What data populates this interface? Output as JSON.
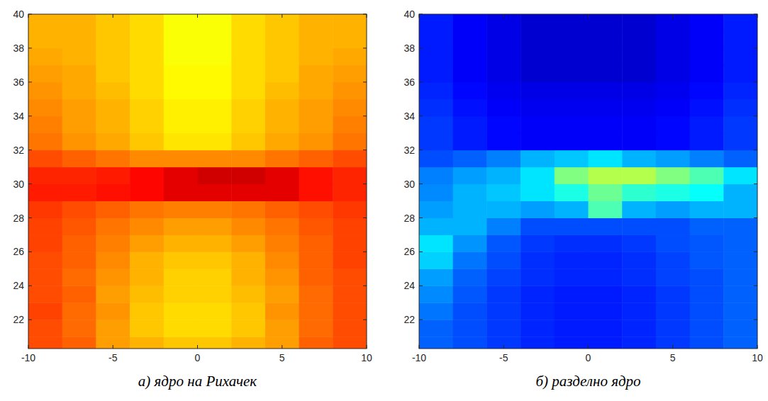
{
  "chart_data": [
    {
      "type": "heatmap",
      "caption": "а) ядро на Рихачек",
      "color": "jet",
      "xlim": [
        -10,
        10
      ],
      "ylim": [
        20.3,
        40
      ],
      "xticks": [
        -10,
        -5,
        0,
        5,
        10
      ],
      "yticks": [
        22,
        24,
        26,
        28,
        30,
        32,
        34,
        36,
        38,
        40
      ],
      "zlim": [
        0,
        1
      ],
      "x_edges": [
        -10,
        -8,
        -6,
        -4,
        -2,
        0,
        2,
        4,
        6,
        8,
        10
      ],
      "y_edges": [
        20.3,
        21,
        22,
        23,
        24,
        25,
        26,
        27,
        28,
        29,
        30,
        31,
        32,
        33,
        34,
        35,
        36,
        37,
        38,
        39,
        40
      ],
      "cells": [
        [
          0.8,
          0.78,
          0.72,
          0.7,
          0.68,
          0.68,
          0.7,
          0.72,
          0.78,
          0.8
        ],
        [
          0.8,
          0.77,
          0.72,
          0.68,
          0.66,
          0.66,
          0.68,
          0.72,
          0.77,
          0.8
        ],
        [
          0.81,
          0.77,
          0.73,
          0.68,
          0.66,
          0.66,
          0.68,
          0.73,
          0.77,
          0.8
        ],
        [
          0.8,
          0.78,
          0.72,
          0.69,
          0.67,
          0.67,
          0.69,
          0.72,
          0.77,
          0.8
        ],
        [
          0.8,
          0.77,
          0.73,
          0.7,
          0.67,
          0.67,
          0.7,
          0.73,
          0.78,
          0.8
        ],
        [
          0.8,
          0.78,
          0.74,
          0.7,
          0.68,
          0.68,
          0.7,
          0.74,
          0.78,
          0.81
        ],
        [
          0.81,
          0.78,
          0.75,
          0.72,
          0.7,
          0.7,
          0.72,
          0.75,
          0.78,
          0.81
        ],
        [
          0.81,
          0.79,
          0.76,
          0.74,
          0.72,
          0.72,
          0.74,
          0.76,
          0.79,
          0.81
        ],
        [
          0.82,
          0.8,
          0.78,
          0.76,
          0.75,
          0.75,
          0.76,
          0.78,
          0.8,
          0.82
        ],
        [
          0.85,
          0.85,
          0.86,
          0.87,
          0.9,
          0.9,
          0.9,
          0.9,
          0.86,
          0.84
        ],
        [
          0.84,
          0.84,
          0.85,
          0.87,
          0.9,
          0.92,
          0.92,
          0.9,
          0.86,
          0.84
        ],
        [
          0.8,
          0.78,
          0.76,
          0.74,
          0.74,
          0.74,
          0.74,
          0.76,
          0.78,
          0.8
        ],
        [
          0.76,
          0.73,
          0.71,
          0.68,
          0.65,
          0.65,
          0.68,
          0.71,
          0.73,
          0.76
        ],
        [
          0.75,
          0.72,
          0.7,
          0.67,
          0.64,
          0.64,
          0.67,
          0.7,
          0.72,
          0.75
        ],
        [
          0.74,
          0.72,
          0.7,
          0.67,
          0.64,
          0.64,
          0.67,
          0.7,
          0.72,
          0.74
        ],
        [
          0.73,
          0.71,
          0.69,
          0.66,
          0.63,
          0.63,
          0.66,
          0.69,
          0.71,
          0.73
        ],
        [
          0.72,
          0.71,
          0.68,
          0.66,
          0.63,
          0.63,
          0.66,
          0.68,
          0.71,
          0.72
        ],
        [
          0.71,
          0.7,
          0.68,
          0.66,
          0.62,
          0.62,
          0.66,
          0.68,
          0.7,
          0.71
        ],
        [
          0.7,
          0.7,
          0.68,
          0.66,
          0.62,
          0.62,
          0.66,
          0.68,
          0.7,
          0.7
        ],
        [
          0.7,
          0.7,
          0.68,
          0.66,
          0.62,
          0.62,
          0.66,
          0.68,
          0.7,
          0.7
        ]
      ]
    },
    {
      "type": "heatmap",
      "caption": "б) разделно ядро",
      "color": "jet",
      "xlim": [
        -10,
        10
      ],
      "ylim": [
        20.3,
        40
      ],
      "xticks": [
        -10,
        -5,
        0,
        5,
        10
      ],
      "yticks": [
        22,
        24,
        26,
        28,
        30,
        32,
        34,
        36,
        38,
        40
      ],
      "zlim": [
        0,
        1
      ],
      "x_edges": [
        -10,
        -8,
        -6,
        -4,
        -2,
        0,
        2,
        4,
        6,
        8,
        10
      ],
      "y_edges": [
        20.3,
        21,
        22,
        23,
        24,
        25,
        26,
        27,
        28,
        29,
        30,
        31,
        32,
        33,
        34,
        35,
        36,
        37,
        38,
        39,
        40
      ],
      "cells": [
        [
          0.22,
          0.2,
          0.18,
          0.16,
          0.15,
          0.15,
          0.16,
          0.18,
          0.2,
          0.22
        ],
        [
          0.22,
          0.2,
          0.18,
          0.16,
          0.15,
          0.15,
          0.16,
          0.18,
          0.2,
          0.22
        ],
        [
          0.24,
          0.2,
          0.18,
          0.16,
          0.15,
          0.15,
          0.16,
          0.18,
          0.2,
          0.22
        ],
        [
          0.26,
          0.21,
          0.18,
          0.16,
          0.15,
          0.15,
          0.16,
          0.18,
          0.2,
          0.22
        ],
        [
          0.28,
          0.22,
          0.19,
          0.17,
          0.16,
          0.16,
          0.17,
          0.19,
          0.2,
          0.22
        ],
        [
          0.33,
          0.24,
          0.2,
          0.17,
          0.16,
          0.16,
          0.17,
          0.19,
          0.21,
          0.22
        ],
        [
          0.35,
          0.27,
          0.21,
          0.18,
          0.17,
          0.17,
          0.18,
          0.2,
          0.21,
          0.22
        ],
        [
          0.3,
          0.3,
          0.25,
          0.2,
          0.2,
          0.2,
          0.2,
          0.2,
          0.22,
          0.22
        ],
        [
          0.28,
          0.3,
          0.3,
          0.28,
          0.3,
          0.45,
          0.3,
          0.28,
          0.3,
          0.3
        ],
        [
          0.26,
          0.3,
          0.32,
          0.35,
          0.4,
          0.48,
          0.42,
          0.4,
          0.38,
          0.3
        ],
        [
          0.25,
          0.28,
          0.3,
          0.35,
          0.5,
          0.55,
          0.55,
          0.5,
          0.45,
          0.35
        ],
        [
          0.2,
          0.22,
          0.25,
          0.3,
          0.32,
          0.35,
          0.3,
          0.28,
          0.25,
          0.22
        ],
        [
          0.18,
          0.15,
          0.13,
          0.12,
          0.12,
          0.12,
          0.12,
          0.13,
          0.15,
          0.18
        ],
        [
          0.18,
          0.15,
          0.13,
          0.12,
          0.12,
          0.12,
          0.12,
          0.13,
          0.15,
          0.18
        ],
        [
          0.17,
          0.14,
          0.12,
          0.11,
          0.11,
          0.11,
          0.11,
          0.12,
          0.14,
          0.17
        ],
        [
          0.16,
          0.13,
          0.11,
          0.1,
          0.1,
          0.1,
          0.1,
          0.11,
          0.13,
          0.16
        ],
        [
          0.15,
          0.12,
          0.1,
          0.08,
          0.08,
          0.08,
          0.08,
          0.1,
          0.12,
          0.15
        ],
        [
          0.15,
          0.12,
          0.1,
          0.08,
          0.08,
          0.08,
          0.08,
          0.1,
          0.12,
          0.15
        ],
        [
          0.15,
          0.12,
          0.1,
          0.08,
          0.08,
          0.08,
          0.08,
          0.1,
          0.12,
          0.15
        ],
        [
          0.15,
          0.12,
          0.1,
          0.08,
          0.08,
          0.08,
          0.08,
          0.1,
          0.12,
          0.15
        ]
      ]
    }
  ]
}
